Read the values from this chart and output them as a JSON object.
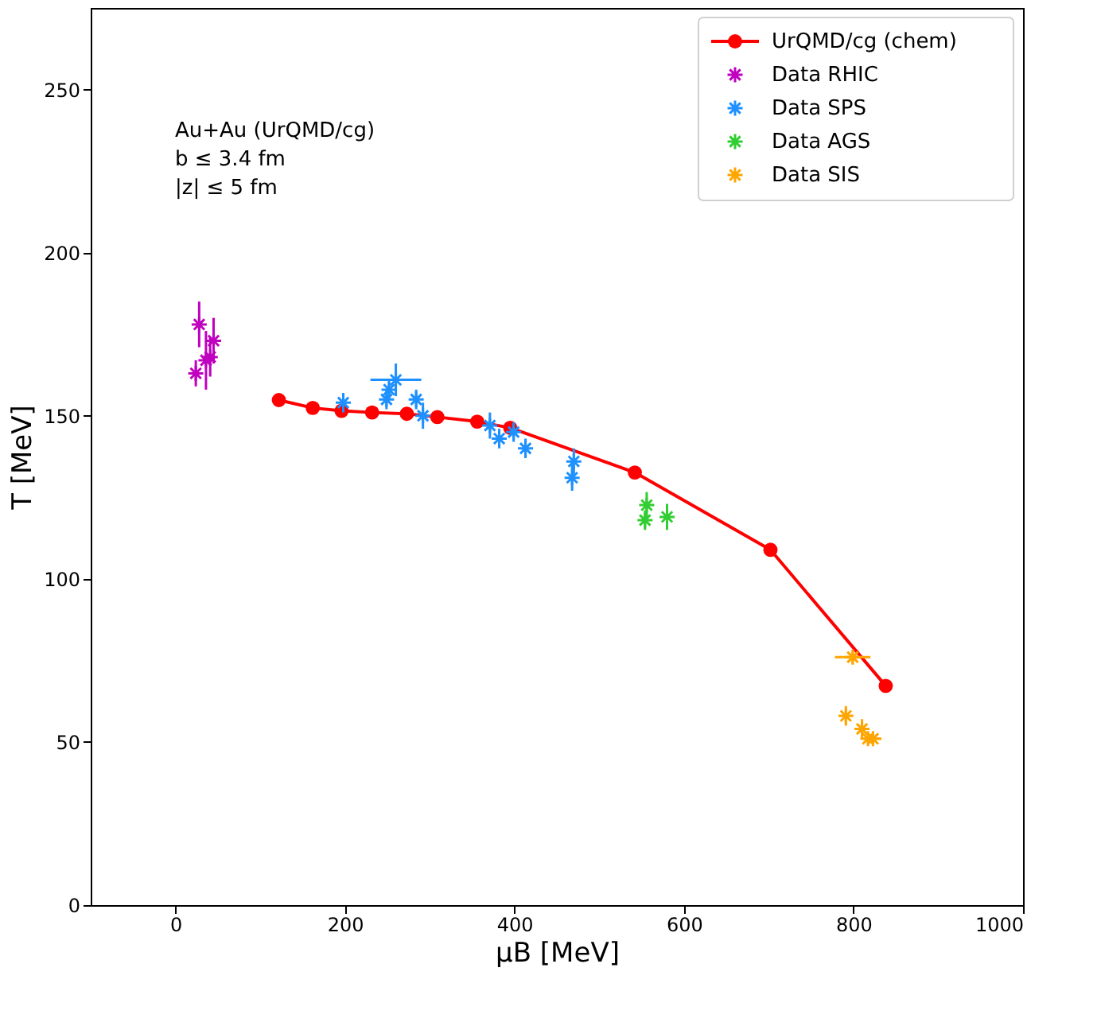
{
  "chart_data": {
    "type": "line",
    "xlabel": "μB [MeV]",
    "ylabel": "T [MeV]",
    "xlim": [
      -100,
      1000
    ],
    "xticks": [
      0,
      200,
      400,
      600,
      800,
      1000
    ],
    "ylim": [
      0,
      275
    ],
    "yticks": [
      0,
      50,
      100,
      150,
      200,
      250
    ],
    "grid": false,
    "legend": "top right",
    "annotations": [
      "Au+Au (UrQMD/cg)",
      "b ≤ 3.4 fm",
      "|z| ≤ 5 fm"
    ],
    "series": [
      {
        "name": "UrQMD/cg (chem)",
        "marker": "circle",
        "line_style": "solid",
        "color": "#ff0000",
        "x": [
          122,
          162,
          196,
          232,
          273,
          309,
          356,
          395,
          542,
          702,
          838
        ],
        "values": [
          154.8,
          152.4,
          151.5,
          151,
          150.6,
          149.6,
          148.2,
          146.3,
          132.6,
          108.9,
          67.2
        ]
      },
      {
        "name": "Data RHIC",
        "type": "scatter",
        "marker": "cross",
        "color": "#bf00bf",
        "x": [
          24,
          28,
          36,
          41,
          45
        ],
        "values": [
          163,
          178,
          167,
          168,
          173
        ],
        "errors": [
          4,
          7,
          9,
          6,
          7
        ]
      },
      {
        "name": "Data SPS",
        "type": "scatter",
        "marker": "cross",
        "color": "#1e90ff",
        "x": [
          198,
          249,
          252,
          260,
          284,
          292,
          371,
          382,
          399,
          413,
          470,
          468
        ],
        "values": [
          154,
          155,
          158,
          161,
          155,
          150,
          147,
          143,
          145,
          140,
          136,
          131
        ],
        "errors": [
          3,
          3,
          3,
          5,
          3,
          4,
          4,
          3,
          3,
          3,
          4,
          4
        ],
        "xerrors": [
          null,
          null,
          null,
          30,
          null,
          null,
          null,
          null,
          null,
          null,
          null,
          null
        ]
      },
      {
        "name": "Data AGS",
        "type": "scatter",
        "marker": "cross",
        "color": "#32cd32",
        "x": [
          556,
          554,
          580
        ],
        "values": [
          122.6,
          118,
          119
        ],
        "errors": [
          4,
          3,
          4
        ]
      },
      {
        "name": "Data SIS",
        "type": "scatter",
        "marker": "cross",
        "color": "#ffa500",
        "x": [
          799,
          791,
          810,
          817,
          823
        ],
        "values": [
          76,
          58,
          54,
          51,
          51
        ],
        "errors": [
          2,
          3,
          3,
          null,
          null
        ],
        "xerrors": [
          21,
          null,
          null,
          null,
          10
        ]
      }
    ]
  }
}
